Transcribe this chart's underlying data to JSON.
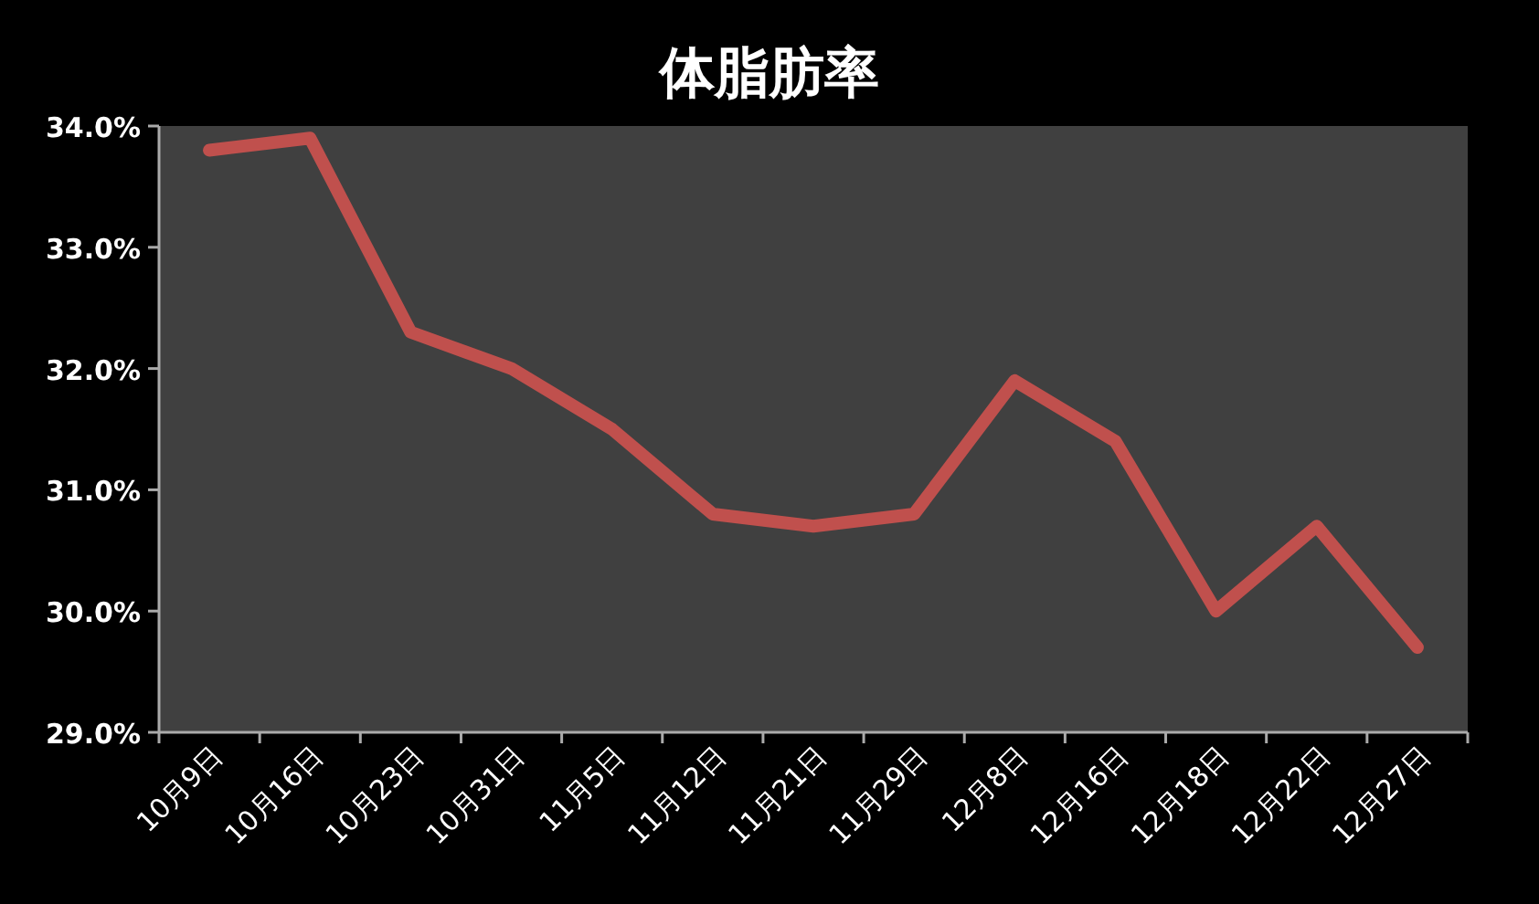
{
  "chart_data": {
    "type": "line",
    "title": "体脂肪率",
    "categories": [
      "10月9日",
      "10月16日",
      "10月23日",
      "10月31日",
      "11月5日",
      "11月12日",
      "11月21日",
      "11月29日",
      "12月8日",
      "12月16日",
      "12月18日",
      "12月22日",
      "12月27日"
    ],
    "series": [
      {
        "color": "#c0504d",
        "values": [
          33.8,
          33.9,
          32.3,
          32.0,
          31.5,
          30.8,
          30.7,
          30.8,
          31.9,
          31.4,
          30.0,
          30.7,
          29.7
        ]
      }
    ],
    "ylim": [
      29,
      34
    ],
    "yticks": [
      {
        "value": 29,
        "label": "29.0%"
      },
      {
        "value": 30,
        "label": "30.0%"
      },
      {
        "value": 31,
        "label": "31.0%"
      },
      {
        "value": 32,
        "label": "32.0%"
      },
      {
        "value": 33,
        "label": "33.0%"
      },
      {
        "value": 34,
        "label": "34.0%"
      }
    ],
    "grid": false,
    "marker": "none",
    "line_style": "solid"
  }
}
